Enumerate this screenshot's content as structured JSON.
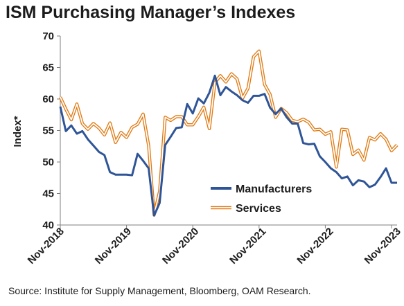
{
  "title": "ISM Purchasing Manager’s Indexes",
  "source": "Source: Institute for Supply Management, Bloomberg, OAM Research.",
  "colors": {
    "manufacturers": "#2f5597",
    "services_outer": "#e07b14",
    "services_inner": "#ffffff"
  },
  "chart_data": {
    "type": "line",
    "title": "ISM Purchasing Manager’s Indexes",
    "ylabel": "Index*",
    "xlabel": "",
    "ylim": [
      40,
      70
    ],
    "yticks": [
      40,
      45,
      50,
      55,
      60,
      65,
      70
    ],
    "xtick_labels": [
      "Nov-2018",
      "Nov-2019",
      "Nov-2020",
      "Nov-2021",
      "Nov-2022",
      "Nov-2023"
    ],
    "x_start": "Nov-2018",
    "x_end": "Dec-2023",
    "grid": false,
    "legend_position": "bottom-right",
    "series": [
      {
        "name": "Manufacturers",
        "values": [
          58.8,
          54.9,
          55.8,
          54.5,
          54.9,
          53.6,
          52.6,
          51.6,
          51.1,
          48.4,
          48.0,
          48.0,
          48.0,
          47.9,
          51.3,
          50.2,
          49.0,
          41.5,
          43.5,
          52.7,
          54.0,
          55.4,
          55.5,
          59.2,
          57.7,
          60.1,
          59.3,
          61.0,
          63.7,
          60.6,
          61.9,
          61.2,
          60.6,
          59.8,
          59.4,
          60.5,
          60.5,
          60.8,
          58.6,
          57.6,
          58.5,
          57.1,
          56.1,
          56.1,
          53.0,
          52.8,
          52.9,
          50.9,
          50.0,
          49.0,
          48.4,
          47.4,
          47.7,
          46.3,
          47.1,
          46.9,
          46.0,
          46.4,
          47.6,
          49.0,
          46.7,
          46.7
        ]
      },
      {
        "name": "Services",
        "values": [
          60.3,
          58.4,
          56.7,
          59.2,
          56.1,
          55.2,
          56.1,
          55.4,
          54.3,
          56.2,
          53.1,
          54.7,
          53.9,
          55.5,
          56.0,
          57.6,
          52.6,
          41.6,
          45.4,
          57.1,
          56.6,
          57.2,
          57.2,
          55.9,
          55.9,
          57.2,
          58.7,
          55.3,
          62.6,
          63.7,
          62.7,
          64.0,
          63.2,
          60.1,
          61.7,
          66.7,
          67.6,
          62.3,
          60.7,
          57.1,
          58.5,
          57.8,
          56.6,
          56.4,
          56.8,
          56.3,
          55.1,
          55.2,
          54.4,
          54.8,
          49.2,
          55.2,
          55.1,
          51.2,
          51.9,
          50.3,
          53.9,
          53.5,
          54.5,
          53.6,
          51.8,
          52.7
        ]
      }
    ]
  }
}
